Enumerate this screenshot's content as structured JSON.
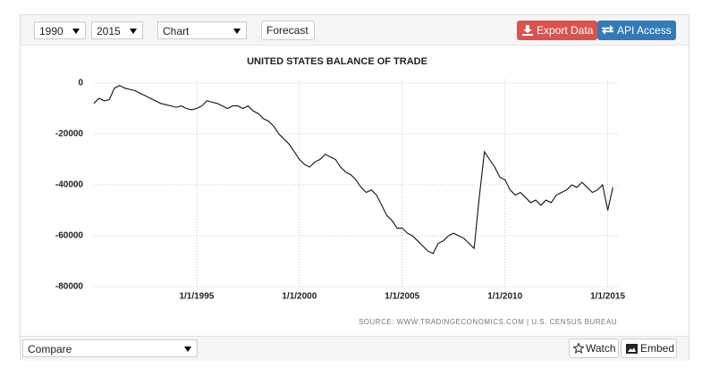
{
  "toolbar": {
    "start_year": "1990",
    "end_year": "2015",
    "view": "Chart",
    "forecast": "Forecast",
    "export": "Export Data",
    "api": "API Access"
  },
  "chart_data": {
    "type": "line",
    "title": "UNITED STATES BALANCE OF TRADE",
    "source": "SOURCE: WWW.TRADINGECONOMICS.COM | U.S. CENSUS BUREAU",
    "color": "#111111",
    "x": [
      "1/1/1990",
      "4/1/1990",
      "7/1/1990",
      "10/1/1990",
      "1/1/1991",
      "4/1/1991",
      "7/1/1991",
      "10/1/1991",
      "1/1/1992",
      "4/1/1992",
      "7/1/1992",
      "10/1/1992",
      "1/1/1993",
      "4/1/1993",
      "7/1/1993",
      "10/1/1993",
      "1/1/1994",
      "4/1/1994",
      "7/1/1994",
      "10/1/1994",
      "1/1/1995",
      "4/1/1995",
      "7/1/1995",
      "10/1/1995",
      "1/1/1996",
      "4/1/1996",
      "7/1/1996",
      "10/1/1996",
      "1/1/1997",
      "4/1/1997",
      "7/1/1997",
      "10/1/1997",
      "1/1/1998",
      "4/1/1998",
      "7/1/1998",
      "10/1/1998",
      "1/1/1999",
      "4/1/1999",
      "7/1/1999",
      "10/1/1999",
      "1/1/2000",
      "4/1/2000",
      "7/1/2000",
      "10/1/2000",
      "1/1/2001",
      "4/1/2001",
      "7/1/2001",
      "10/1/2001",
      "1/1/2002",
      "4/1/2002",
      "7/1/2002",
      "10/1/2002",
      "1/1/2003",
      "4/1/2003",
      "7/1/2003",
      "10/1/2003",
      "1/1/2004",
      "4/1/2004",
      "7/1/2004",
      "10/1/2004",
      "1/1/2005",
      "4/1/2005",
      "7/1/2005",
      "10/1/2005",
      "1/1/2006",
      "4/1/2006",
      "7/1/2006",
      "10/1/2006",
      "1/1/2007",
      "4/1/2007",
      "7/1/2007",
      "10/1/2007",
      "1/1/2008",
      "4/1/2008",
      "7/1/2008",
      "10/1/2008",
      "1/1/2009",
      "4/1/2009",
      "7/1/2009",
      "10/1/2009",
      "1/1/2010",
      "4/1/2010",
      "7/1/2010",
      "10/1/2010",
      "1/1/2011",
      "4/1/2011",
      "7/1/2011",
      "10/1/2011",
      "1/1/2012",
      "4/1/2012",
      "7/1/2012",
      "10/1/2012",
      "1/1/2013",
      "4/1/2013",
      "7/1/2013",
      "10/1/2013",
      "1/1/2014",
      "4/1/2014",
      "7/1/2014",
      "10/1/2014",
      "1/1/2015",
      "4/1/2015"
    ],
    "values": [
      -8000,
      -6000,
      -7000,
      -6500,
      -2000,
      -1000,
      -2000,
      -2500,
      -3000,
      -4000,
      -5000,
      -6000,
      -7000,
      -8000,
      -8500,
      -9000,
      -9500,
      -9000,
      -10000,
      -10500,
      -10000,
      -9000,
      -7000,
      -7500,
      -8000,
      -9000,
      -10000,
      -9000,
      -9000,
      -10000,
      -9000,
      -11000,
      -12000,
      -14000,
      -15000,
      -17000,
      -20000,
      -22000,
      -24000,
      -27000,
      -30000,
      -32000,
      -33000,
      -31000,
      -30000,
      -28000,
      -29000,
      -30000,
      -33000,
      -35000,
      -36000,
      -38000,
      -41000,
      -43000,
      -42000,
      -44000,
      -48000,
      -52000,
      -54000,
      -57000,
      -57000,
      -59000,
      -60000,
      -62000,
      -64000,
      -66000,
      -67000,
      -63000,
      -62000,
      -60000,
      -59000,
      -60000,
      -61000,
      -63000,
      -65000,
      -45000,
      -27000,
      -30000,
      -33000,
      -37000,
      -38000,
      -42000,
      -44000,
      -43000,
      -45000,
      -47000,
      -46000,
      -48000,
      -46000,
      -47000,
      -44000,
      -43000,
      -42000,
      -40000,
      -41000,
      -39000,
      -41000,
      -43000,
      -42000,
      -40000,
      -50000,
      -41000
    ],
    "xlim": [
      "1/1/1990",
      "8/1/2015"
    ],
    "xticks": [
      "1/1/1995",
      "1/1/2000",
      "1/1/2005",
      "1/1/2010",
      "1/1/2015"
    ],
    "ylim": [
      -80000,
      1400
    ],
    "yticks": [
      0,
      -20000,
      -40000,
      -60000,
      -80000
    ],
    "grid": true
  },
  "footer": {
    "compare": "Compare",
    "watch": "Watch",
    "embed": "Embed"
  }
}
